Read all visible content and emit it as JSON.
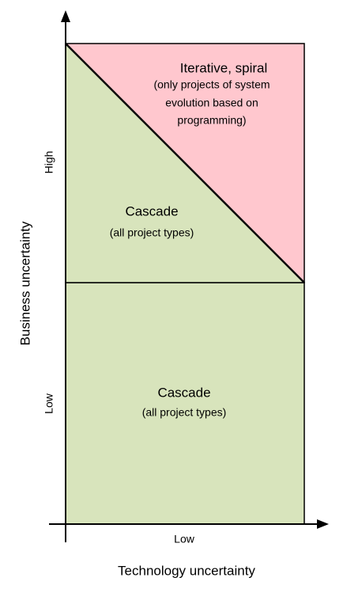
{
  "axes": {
    "y_label": "Business uncertainty",
    "x_label": "Technology uncertainty",
    "y_ticks": [
      "High",
      "Low"
    ],
    "x_ticks": [
      "Low"
    ]
  },
  "regions": [
    {
      "title": "Iterative, spiral",
      "lines": [
        "(only projects of system",
        "evolution based on",
        "programming)"
      ]
    },
    {
      "title": "Cascade",
      "lines": [
        "(all project types)"
      ]
    },
    {
      "title": "Cascade",
      "lines": [
        "(all project types)"
      ]
    }
  ]
}
